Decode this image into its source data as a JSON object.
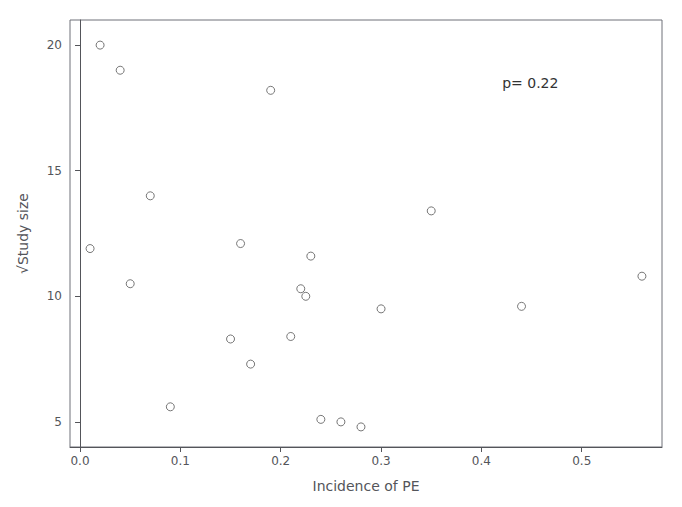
{
  "chart_data": {
    "type": "scatter",
    "x": [
      0.01,
      0.02,
      0.04,
      0.05,
      0.07,
      0.09,
      0.15,
      0.16,
      0.17,
      0.19,
      0.21,
      0.22,
      0.225,
      0.23,
      0.24,
      0.26,
      0.28,
      0.3,
      0.35,
      0.44,
      0.56
    ],
    "values": [
      11.9,
      20.0,
      19.0,
      10.5,
      14.0,
      5.6,
      8.3,
      12.1,
      7.3,
      18.2,
      8.4,
      10.3,
      10.0,
      11.6,
      5.1,
      5.0,
      4.8,
      9.5,
      13.4,
      9.6,
      10.8
    ],
    "xlim": [
      -0.01,
      0.58
    ],
    "ylim": [
      4.0,
      21.0
    ],
    "xticks": [
      {
        "value": 0.0,
        "label": "0.0"
      },
      0.1,
      0.2,
      0.3,
      0.4,
      0.5
    ],
    "yticks": [
      5,
      10,
      15,
      20
    ],
    "xlabel": "Incidence of PE",
    "ylabel": "√Study size",
    "annotation": "p= 0.22",
    "color": "#555555",
    "marker": "open circle",
    "grid": false
  }
}
